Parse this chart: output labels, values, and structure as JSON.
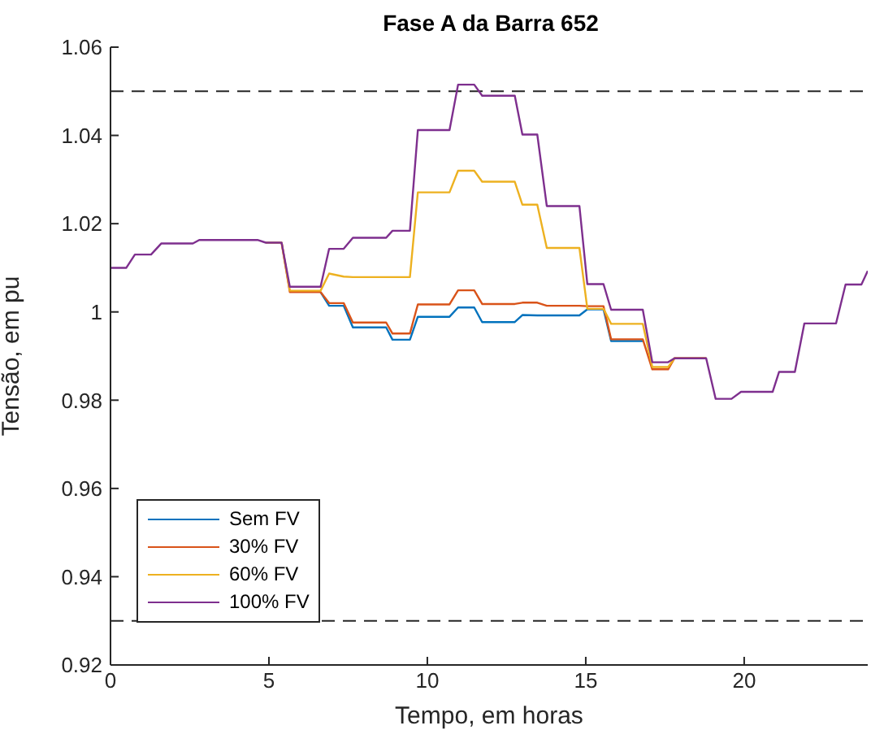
{
  "chart_data": {
    "type": "line",
    "title": "Fase A da Barra 652",
    "xlabel": "Tempo, em horas",
    "ylabel": "Tensão, em pu",
    "x": [
      0,
      0.5,
      0.77,
      1.28,
      1.6,
      2.6,
      2.8,
      4.64,
      4.9,
      5.4,
      5.66,
      6.63,
      6.9,
      7.36,
      7.65,
      8.7,
      8.9,
      9.45,
      9.7,
      10.7,
      10.97,
      11.48,
      11.73,
      12.76,
      13.0,
      13.47,
      13.77,
      14.8,
      15.05,
      15.56,
      15.8,
      16.8,
      17.1,
      17.6,
      17.8,
      18.8,
      19.1,
      19.6,
      19.9,
      20.9,
      21.1,
      21.6,
      21.9,
      22.9,
      23.2,
      23.7,
      23.9
    ],
    "series": [
      {
        "name": "Sem FV",
        "color": "#0072bd",
        "values": [
          null,
          null,
          null,
          null,
          null,
          null,
          null,
          null,
          null,
          null,
          null,
          1.0045,
          1.0014,
          1.0014,
          0.9965,
          0.9965,
          0.9937,
          0.9937,
          0.9989,
          0.9989,
          1.001,
          1.001,
          0.9977,
          0.9977,
          0.9993,
          0.9992,
          0.9992,
          0.9992,
          1.0006,
          1.0006,
          0.9934,
          0.9934,
          null,
          null,
          null,
          null,
          null,
          null,
          null,
          null,
          null,
          null,
          null,
          null,
          null,
          null,
          null
        ]
      },
      {
        "name": "30% FV",
        "color": "#d95319",
        "values": [
          null,
          null,
          null,
          null,
          null,
          null,
          null,
          null,
          null,
          1.0157,
          1.0045,
          1.0045,
          1.002,
          1.002,
          0.9976,
          0.9976,
          0.9951,
          0.9951,
          1.0017,
          1.0017,
          1.0049,
          1.0049,
          1.0018,
          1.0018,
          1.0021,
          1.0021,
          1.0014,
          1.0014,
          1.0013,
          1.0013,
          0.9938,
          0.9938,
          0.987,
          0.987,
          0.9895,
          0.9895,
          null,
          null,
          null,
          null,
          null,
          null,
          null,
          null,
          null,
          null,
          null
        ]
      },
      {
        "name": "60% FV",
        "color": "#edb120",
        "values": [
          null,
          null,
          null,
          null,
          null,
          null,
          null,
          null,
          1.0157,
          1.0157,
          1.0048,
          1.0048,
          1.0087,
          1.008,
          1.0079,
          1.0079,
          1.0079,
          1.0079,
          1.0271,
          1.0271,
          1.032,
          1.032,
          1.0295,
          1.0295,
          1.0243,
          1.0243,
          1.0145,
          1.0145,
          1.0007,
          1.0007,
          0.9973,
          0.9973,
          0.9875,
          0.9875,
          0.9895,
          0.9895,
          null,
          null,
          null,
          null,
          null,
          null,
          null,
          null,
          null,
          null,
          null
        ]
      },
      {
        "name": "100% FV",
        "color": "#7e2f8e",
        "values": [
          1.01,
          1.01,
          1.013,
          1.013,
          1.0155,
          1.0155,
          1.0163,
          1.0163,
          1.0157,
          1.0157,
          1.0057,
          1.0057,
          1.0143,
          1.0143,
          1.0168,
          1.0168,
          1.0184,
          1.0184,
          1.0412,
          1.0412,
          1.0515,
          1.0515,
          1.049,
          1.049,
          1.0402,
          1.0402,
          1.024,
          1.024,
          1.0063,
          1.0063,
          1.0005,
          1.0005,
          0.9886,
          0.9886,
          0.9895,
          0.9895,
          0.9803,
          0.9803,
          0.9819,
          0.9819,
          0.9864,
          0.9864,
          0.9974,
          0.9974,
          1.0062,
          1.0062,
          1.0093
        ]
      }
    ],
    "xlim": [
      0,
      23.9
    ],
    "xticks": [
      0,
      5,
      10,
      15,
      20
    ],
    "ylim": [
      0.92,
      1.06
    ],
    "yticks": [
      0.92,
      0.94,
      0.96,
      0.98,
      1,
      1.02,
      1.04,
      1.06
    ],
    "ref_lines": [
      {
        "axis": "y",
        "value": 1.05,
        "color": "#262626",
        "line_style": "dashed"
      },
      {
        "axis": "y",
        "value": 0.93,
        "color": "#262626",
        "line_style": "dashed"
      }
    ],
    "grid": false,
    "legend": "bottom left"
  }
}
